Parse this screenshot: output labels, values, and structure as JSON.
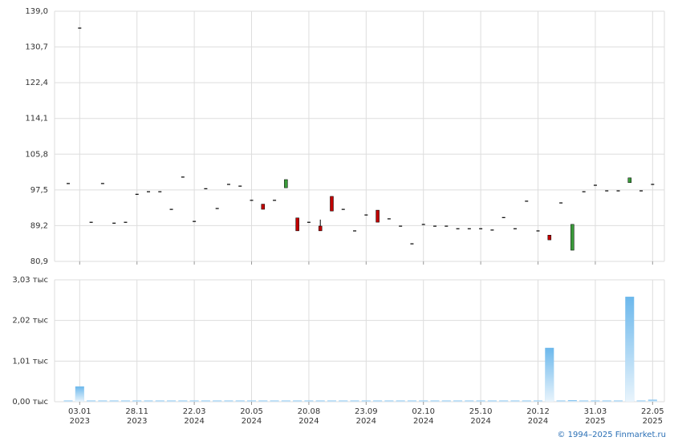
{
  "chart_data": {
    "type": "candlestick",
    "credit": "© 1994–2025 Finmarket.ru",
    "categories": [
      null,
      [
        "03.01",
        "2023"
      ],
      null,
      null,
      null,
      null,
      [
        "28.11",
        "2023"
      ],
      null,
      null,
      null,
      null,
      [
        "22.03",
        "2024"
      ],
      null,
      null,
      null,
      null,
      [
        "20.05",
        "2024"
      ],
      null,
      null,
      null,
      null,
      [
        "20.08",
        "2024"
      ],
      null,
      null,
      null,
      null,
      [
        "23.09",
        "2024"
      ],
      null,
      null,
      null,
      null,
      [
        "02.10",
        "2024"
      ],
      null,
      null,
      null,
      null,
      [
        "25.10",
        "2024"
      ],
      null,
      null,
      null,
      null,
      [
        "20.12",
        "2024"
      ],
      null,
      null,
      null,
      null,
      [
        "31.03",
        "2025"
      ],
      null,
      null,
      null,
      null,
      [
        "22.05",
        "2025"
      ]
    ],
    "open": [
      99.0,
      135.1,
      90.0,
      99.0,
      89.8,
      90.0,
      96.5,
      97.1,
      97.1,
      93.0,
      100.5,
      90.2,
      97.8,
      93.2,
      98.8,
      98.4,
      95.1,
      94.2,
      95.1,
      98.0,
      91.0,
      90.0,
      89.1,
      96.0,
      93.0,
      88.0,
      91.7,
      92.8,
      90.8,
      89.1,
      85.0,
      89.5,
      89.1,
      89.1,
      88.5,
      88.5,
      88.5,
      88.2,
      91.1,
      88.5,
      94.9,
      88.0,
      87.0,
      94.5,
      83.5,
      97.1,
      98.6,
      97.3,
      97.3,
      99.2,
      97.3,
      98.8
    ],
    "high": [
      99.0,
      135.1,
      90.0,
      99.0,
      89.8,
      90.0,
      96.5,
      97.1,
      97.1,
      93.0,
      100.5,
      90.2,
      97.8,
      93.2,
      98.8,
      98.4,
      95.1,
      94.2,
      95.1,
      99.9,
      91.0,
      90.0,
      90.6,
      96.0,
      93.0,
      88.0,
      91.7,
      92.8,
      90.8,
      89.1,
      85.0,
      89.5,
      89.1,
      89.1,
      88.5,
      88.5,
      88.5,
      88.2,
      91.1,
      88.5,
      94.9,
      88.0,
      87.0,
      94.5,
      89.5,
      97.1,
      98.6,
      97.3,
      97.3,
      100.3,
      97.3,
      98.8
    ],
    "low": [
      99.0,
      135.1,
      90.0,
      99.0,
      89.8,
      90.0,
      96.5,
      97.1,
      97.1,
      93.0,
      100.5,
      90.2,
      97.8,
      93.2,
      98.8,
      98.4,
      95.1,
      93.0,
      95.1,
      98.0,
      88.0,
      90.0,
      88.0,
      92.6,
      93.0,
      88.0,
      91.7,
      90.0,
      90.8,
      89.1,
      85.0,
      89.5,
      89.1,
      89.1,
      88.5,
      88.5,
      88.5,
      88.2,
      91.1,
      88.5,
      94.9,
      88.0,
      85.9,
      94.5,
      83.5,
      97.1,
      98.6,
      97.3,
      97.3,
      99.2,
      97.3,
      98.8
    ],
    "close": [
      99.0,
      135.1,
      90.0,
      99.0,
      89.8,
      90.0,
      96.5,
      97.1,
      97.1,
      93.0,
      100.5,
      90.2,
      97.8,
      93.2,
      98.8,
      98.4,
      95.1,
      93.0,
      95.1,
      99.9,
      88.0,
      90.0,
      88.0,
      92.6,
      93.0,
      88.0,
      91.7,
      90.0,
      90.8,
      89.1,
      85.0,
      89.5,
      89.1,
      89.1,
      88.5,
      88.5,
      88.5,
      88.2,
      91.1,
      88.5,
      94.9,
      88.0,
      85.9,
      94.5,
      89.5,
      97.1,
      98.6,
      97.3,
      97.3,
      100.3,
      97.3,
      98.8
    ],
    "up_color": "#3a9a3a",
    "down_color": "#c00000",
    "flat_color": "#000000",
    "ylim": [
      80.9,
      139.0
    ],
    "yticks": [
      {
        "value": 80.9,
        "label": "80,9"
      },
      {
        "value": 89.2,
        "label": "89,2"
      },
      {
        "value": 97.5,
        "label": "97,5"
      },
      {
        "value": 105.8,
        "label": "105,8"
      },
      {
        "value": 114.1,
        "label": "114,1"
      },
      {
        "value": 122.4,
        "label": "122,4"
      },
      {
        "value": 130.7,
        "label": "130,7"
      },
      {
        "value": 139.0,
        "label": "139,0"
      }
    ],
    "volume": [
      0.01,
      0.38,
      0.01,
      0.01,
      0.01,
      0.01,
      0.01,
      0.01,
      0.01,
      0.01,
      0.01,
      0.01,
      0.01,
      0.01,
      0.01,
      0.01,
      0.01,
      0.01,
      0.01,
      0.01,
      0.01,
      0.01,
      0.01,
      0.01,
      0.01,
      0.01,
      0.01,
      0.01,
      0.01,
      0.01,
      0.01,
      0.01,
      0.01,
      0.01,
      0.01,
      0.01,
      0.01,
      0.01,
      0.01,
      0.01,
      0.01,
      0.01,
      1.34,
      0.01,
      0.04,
      0.01,
      0.01,
      0.01,
      0.01,
      2.61,
      0.01,
      0.05
    ],
    "volume_color": "#6cb8ec",
    "y2lim": [
      0,
      3.03
    ],
    "y2ticks": [
      {
        "value": 0,
        "label": "0,00 тыс"
      },
      {
        "value": 1.01,
        "label": "1,01 тыс"
      },
      {
        "value": 2.02,
        "label": "2,02 тыс"
      },
      {
        "value": 3.03,
        "label": "3,03 тыс"
      }
    ],
    "grid": true
  }
}
